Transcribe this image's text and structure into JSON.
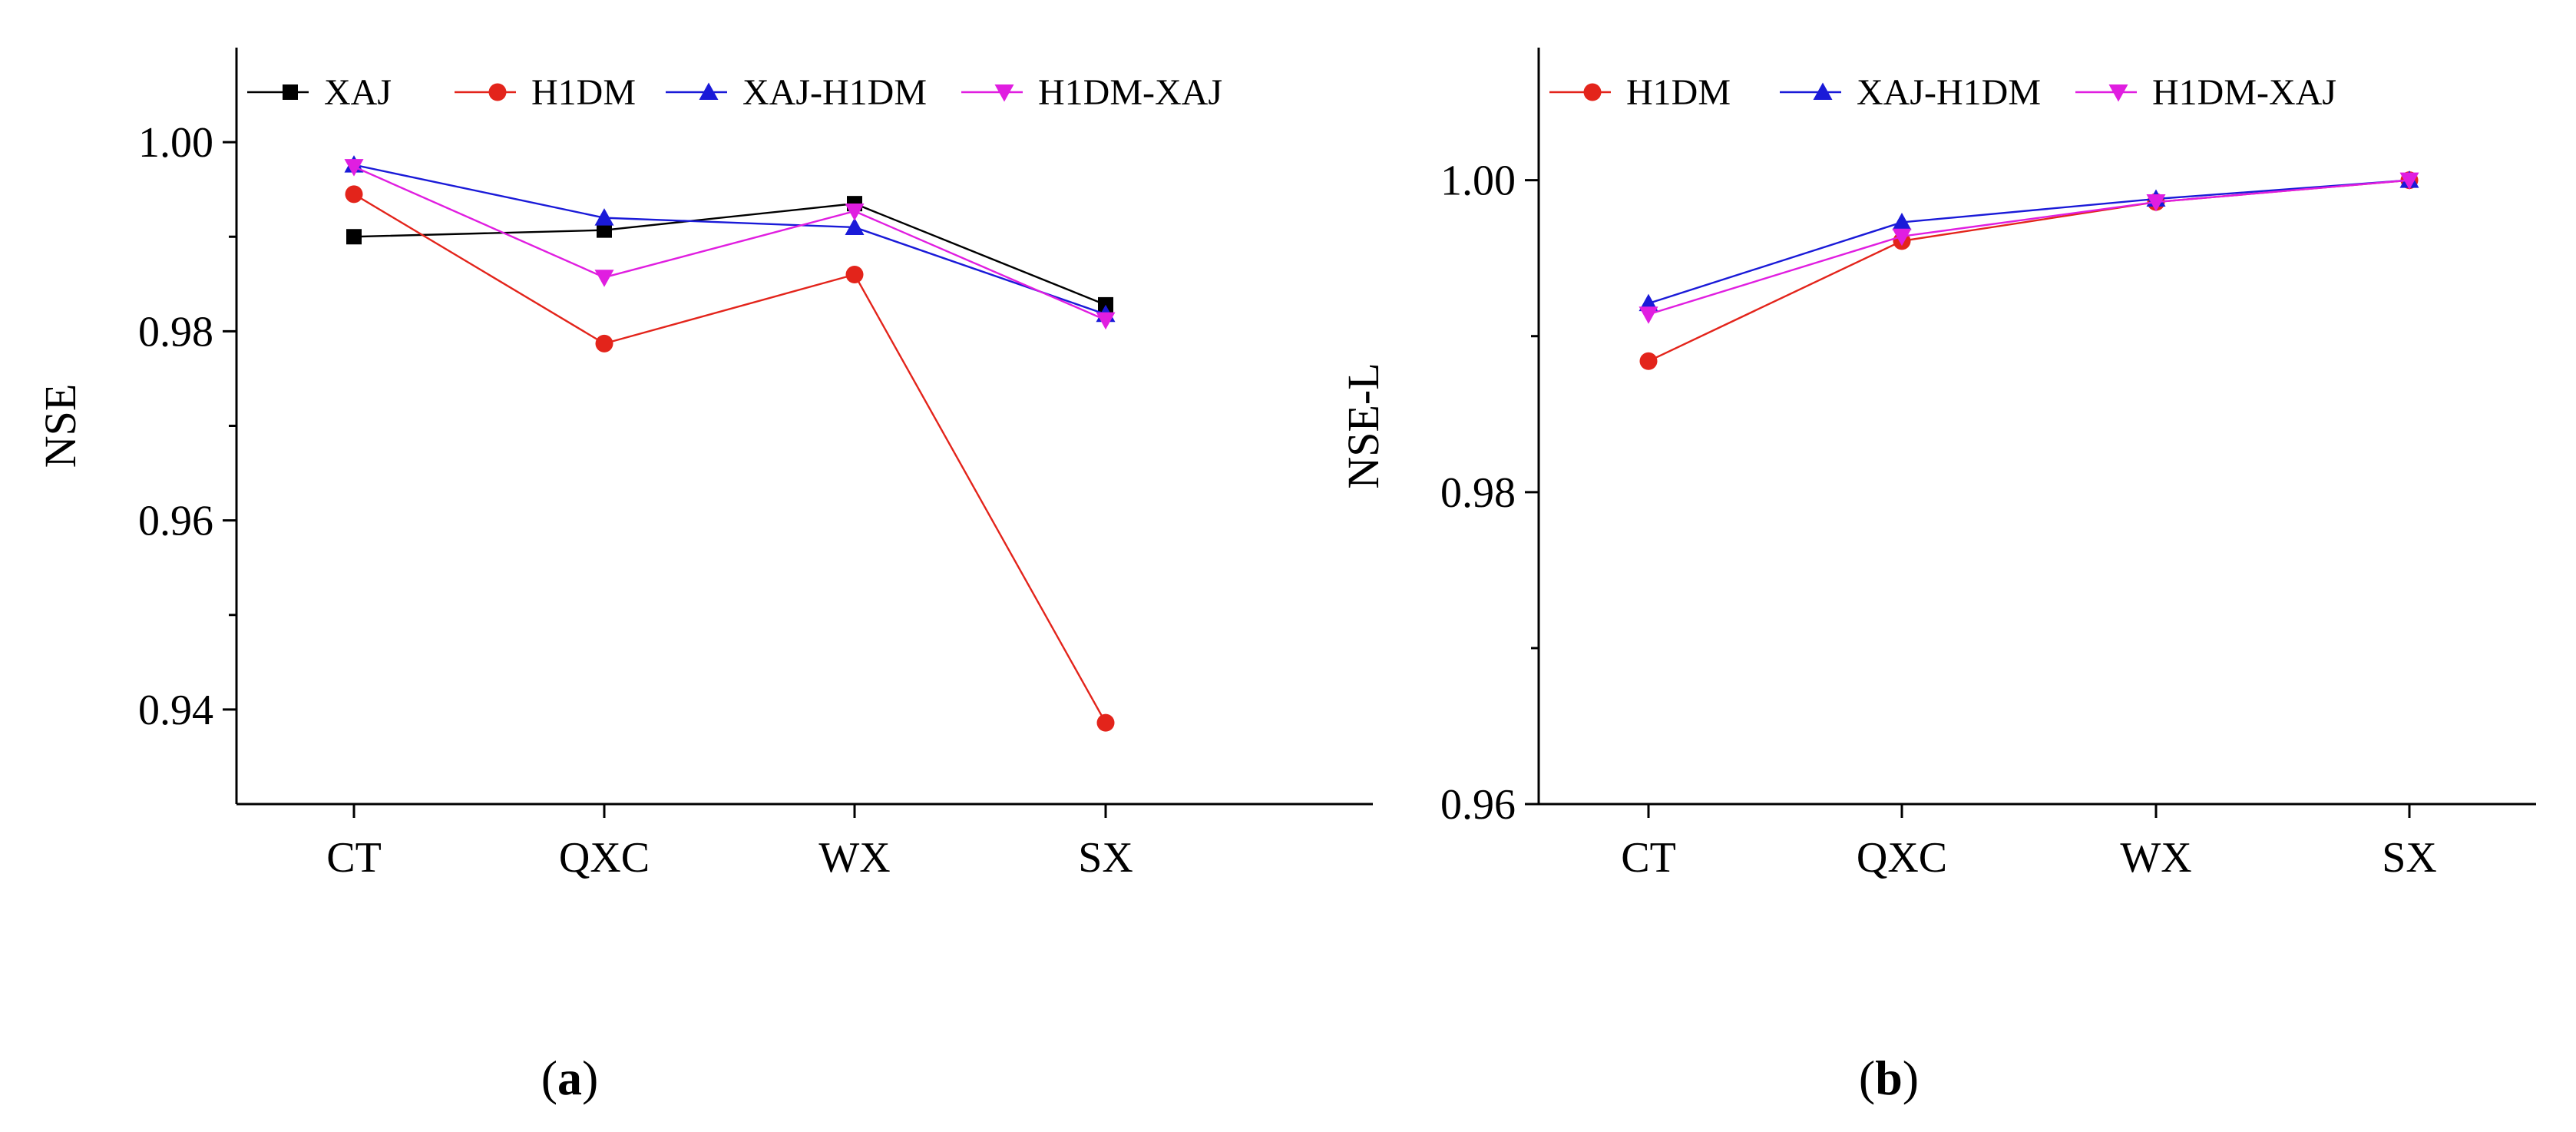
{
  "chart_data": [
    {
      "panel": "a",
      "type": "line",
      "categories": [
        "CT",
        "QXC",
        "WX",
        "SX"
      ],
      "series": [
        {
          "name": "XAJ",
          "color": "#000000",
          "marker": "square",
          "values": [
            0.99,
            0.9907,
            0.9935,
            0.9828
          ]
        },
        {
          "name": "H1DM",
          "color": "#e3241b",
          "marker": "circle",
          "values": [
            0.9945,
            0.9787,
            0.986,
            0.9386
          ]
        },
        {
          "name": "XAJ-H1DM",
          "color": "#1a1ad8",
          "marker": "triangle-up",
          "values": [
            0.9976,
            0.992,
            0.991,
            0.9818
          ]
        },
        {
          "name": "H1DM-XAJ",
          "color": "#e01ee0",
          "marker": "triangle-down",
          "values": [
            0.9974,
            0.9857,
            0.9927,
            0.9812
          ]
        }
      ],
      "title": "",
      "xlabel": "",
      "ylabel": "NSE",
      "ylim": [
        0.93,
        1.01
      ],
      "yticks": [
        "0.94",
        "0.96",
        "0.98",
        "1.00"
      ],
      "legend": "top, horizontal",
      "caption": {
        "open": "(",
        "letter": "a",
        "close": ")"
      }
    },
    {
      "panel": "b",
      "type": "line",
      "categories": [
        "CT",
        "QXC",
        "WX",
        "SX"
      ],
      "series": [
        {
          "name": "H1DM",
          "color": "#e3241b",
          "marker": "circle",
          "values": [
            0.9884,
            0.9961,
            0.9986,
            1.0
          ]
        },
        {
          "name": "XAJ-H1DM",
          "color": "#1a1ad8",
          "marker": "triangle-up",
          "values": [
            0.9921,
            0.9973,
            0.9988,
            1.0
          ]
        },
        {
          "name": "H1DM-XAJ",
          "color": "#e01ee0",
          "marker": "triangle-down",
          "values": [
            0.9914,
            0.9964,
            0.9986,
            1.0
          ]
        }
      ],
      "title": "",
      "xlabel": "",
      "ylabel": "NSE-L",
      "ylim": [
        0.96,
        1.0085
      ],
      "yticks": [
        "0.96",
        "0.98",
        "1.00"
      ],
      "legend": "top, horizontal",
      "caption": {
        "open": "(",
        "letter": "b",
        "close": ")"
      }
    }
  ]
}
